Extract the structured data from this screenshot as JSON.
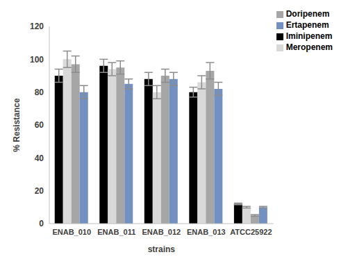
{
  "chart_data": {
    "type": "bar",
    "xlabel": "strains",
    "ylabel": "% Resistance",
    "categories": [
      "ENAB_010",
      "ENAB_011",
      "ENAB_012",
      "ENAB_013",
      "ATCC25922"
    ],
    "series": [
      {
        "name": "Iminipenem",
        "color": "#000000",
        "values": [
          90,
          96,
          88,
          80,
          12
        ],
        "errors": [
          4,
          4,
          4,
          3,
          0.5
        ]
      },
      {
        "name": "Meropenem",
        "color": "#d9d9d9",
        "values": [
          100,
          94,
          80,
          86,
          10
        ],
        "errors": [
          5,
          4,
          4,
          4,
          0.5
        ]
      },
      {
        "name": "Doripenem",
        "color": "#a6a6a6",
        "values": [
          97,
          95,
          90,
          93,
          5
        ],
        "errors": [
          5,
          4,
          4,
          5,
          0.5
        ]
      },
      {
        "name": "Ertapenem",
        "color": "#7391c0",
        "values": [
          80,
          85,
          88,
          82,
          10
        ],
        "errors": [
          4,
          3,
          4,
          4,
          0.5
        ]
      }
    ],
    "ylim": [
      0,
      120
    ],
    "yticks": [
      0,
      20,
      40,
      60,
      80,
      100,
      120
    ],
    "legend": "upper right",
    "grid": false
  }
}
